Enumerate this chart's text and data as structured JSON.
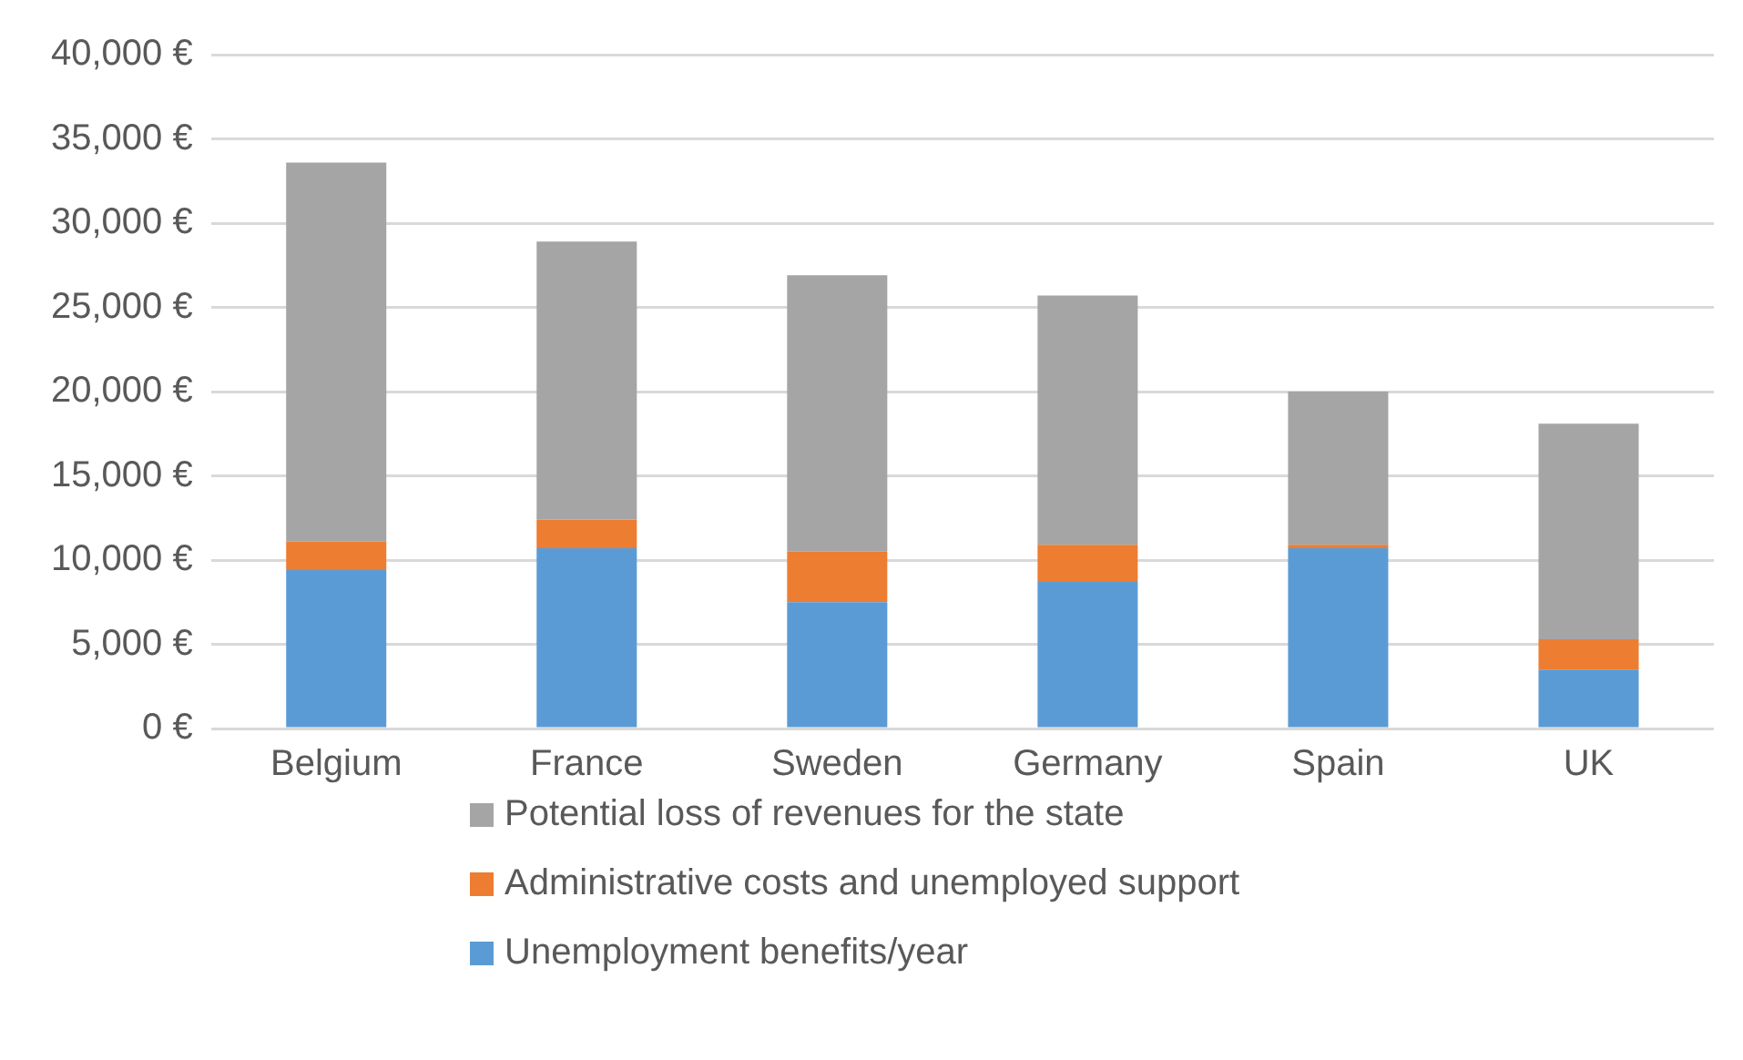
{
  "chart_data": {
    "type": "bar",
    "stacked": true,
    "categories": [
      "Belgium",
      "France",
      "Sweden",
      "Germany",
      "Spain",
      "UK"
    ],
    "series": [
      {
        "name": "Unemployment benefits/year",
        "color": "#5b9bd5",
        "values": [
          9400,
          10700,
          7500,
          8700,
          10700,
          3500
        ]
      },
      {
        "name": "Administrative costs and unemployed support",
        "color": "#ed7d31",
        "values": [
          1700,
          1700,
          3000,
          2200,
          200,
          1800
        ]
      },
      {
        "name": "Potential loss of revenues for the state",
        "color": "#a5a5a5",
        "values": [
          22500,
          16500,
          16400,
          14800,
          9100,
          12800
        ]
      }
    ],
    "ylim": [
      0,
      40000
    ],
    "yticks": [
      {
        "value": 0,
        "label": "0 €"
      },
      {
        "value": 5000,
        "label": "5,000 €"
      },
      {
        "value": 10000,
        "label": "10,000 €"
      },
      {
        "value": 15000,
        "label": "15,000 €"
      },
      {
        "value": 20000,
        "label": "20,000 €"
      },
      {
        "value": 25000,
        "label": "25,000 €"
      },
      {
        "value": 30000,
        "label": "30,000 €"
      },
      {
        "value": 35000,
        "label": "35,000 €"
      },
      {
        "value": 40000,
        "label": "40,000 €"
      }
    ],
    "grid": "y",
    "legend": "bottom"
  }
}
